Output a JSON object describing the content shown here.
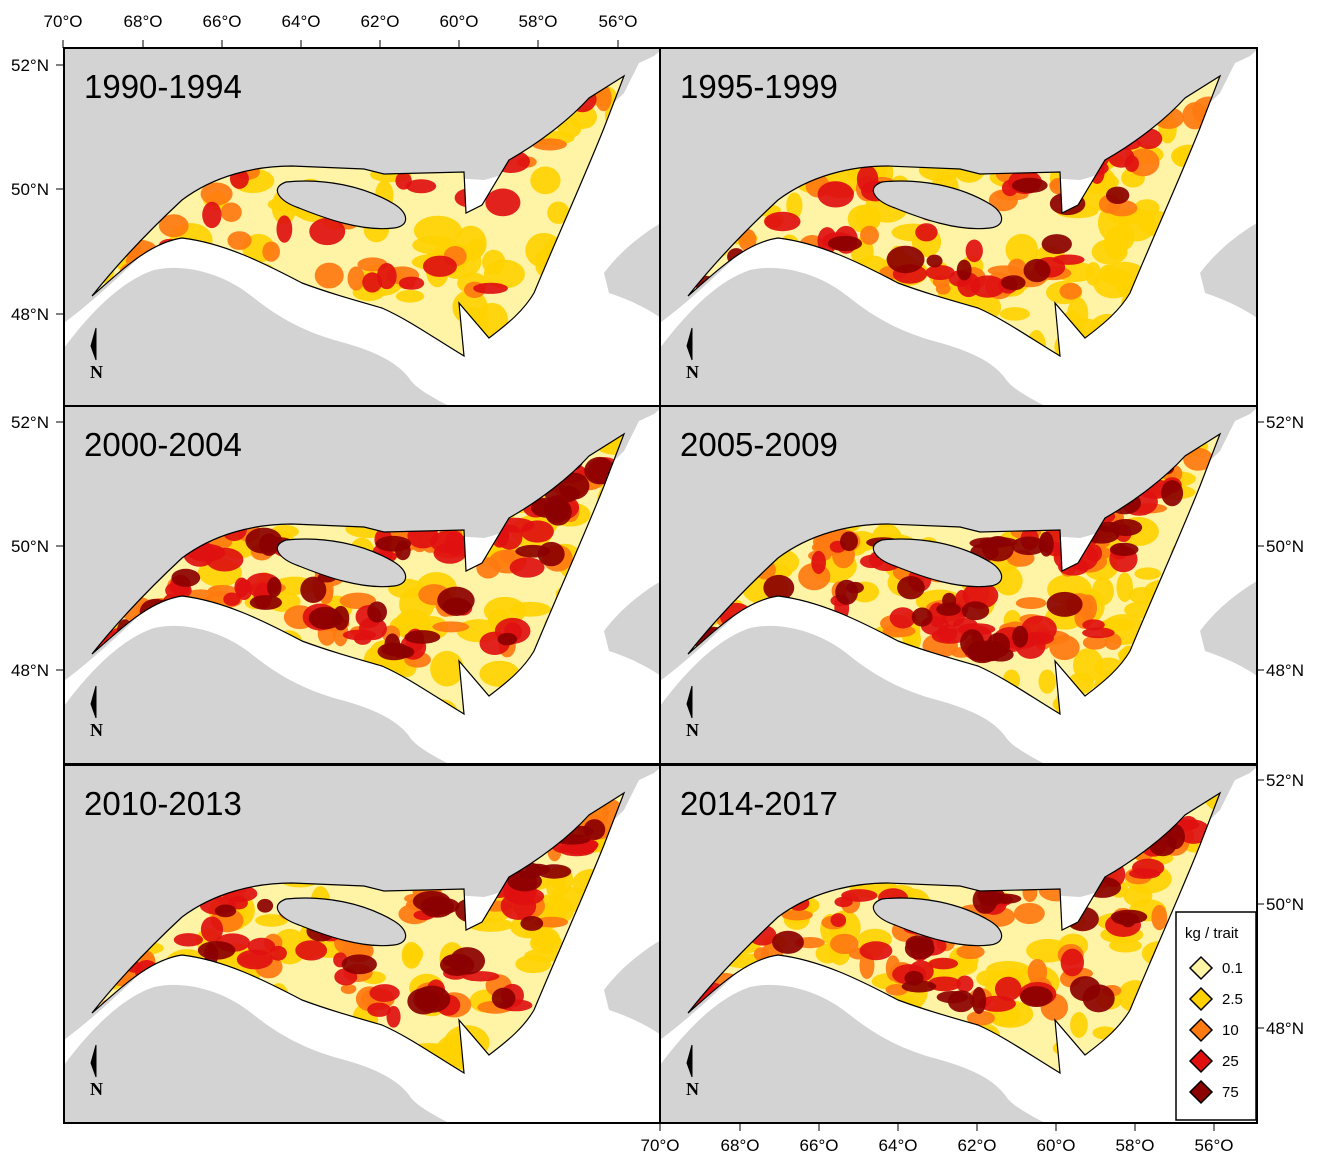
{
  "figure": {
    "top_axis_labels": [
      "70°O",
      "68°O",
      "66°O",
      "64°O",
      "62°O",
      "60°O",
      "58°O",
      "56°O"
    ],
    "bottom_axis_labels": [
      "70°O",
      "68°O",
      "66°O",
      "64°O",
      "62°O",
      "60°O",
      "58°O",
      "56°O"
    ],
    "left_axis_labels": [
      "52°N",
      "50°N",
      "48°N"
    ],
    "right_axis_labels": [
      "52°N",
      "50°N",
      "48°N"
    ],
    "north_arrow_letter": "N",
    "panels": [
      {
        "title": "1990-1994",
        "intensity": 1
      },
      {
        "title": "1995-1999",
        "intensity": 2
      },
      {
        "title": "2000-2004",
        "intensity": 4
      },
      {
        "title": "2005-2009",
        "intensity": 4
      },
      {
        "title": "2010-2013",
        "intensity": 3
      },
      {
        "title": "2014-2017",
        "intensity": 3
      }
    ],
    "legend": {
      "title": "kg / trait",
      "items": [
        {
          "label": "0.1",
          "color": "#fff3a6"
        },
        {
          "label": "2.5",
          "color": "#ffd200"
        },
        {
          "label": "10",
          "color": "#ff7a10"
        },
        {
          "label": "25",
          "color": "#e01010"
        },
        {
          "label": "75",
          "color": "#8b0000"
        }
      ]
    },
    "colors": {
      "land": "#d3d3d3",
      "sea": "#ffffff",
      "frame": "#000000",
      "low": "#fff3a6",
      "mid": "#ffd200",
      "orange": "#ff7a10",
      "red": "#e01010",
      "darkred": "#8b0000"
    }
  }
}
